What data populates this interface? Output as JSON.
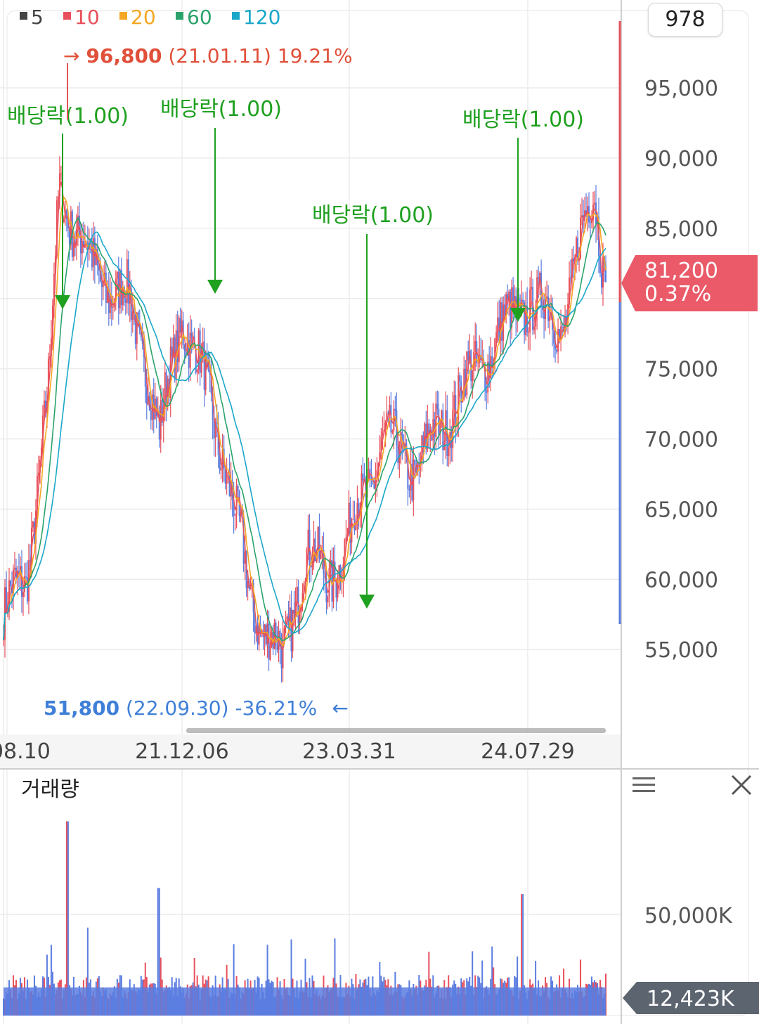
{
  "legend": [
    {
      "label": "5",
      "color": "#444444"
    },
    {
      "label": "10",
      "color": "#e8505b"
    },
    {
      "label": "20",
      "color": "#f5a623"
    },
    {
      "label": "60",
      "color": "#2aa36b"
    },
    {
      "label": "120",
      "color": "#1aa7c9"
    }
  ],
  "counter": "978",
  "high_marker": {
    "arrow": "→",
    "value": "96,800",
    "date": "(21.01.11)",
    "pct": "19.21%"
  },
  "low_marker": {
    "value": "51,800",
    "date": "(22.09.30)",
    "pct": "-36.21%",
    "arrow": "←"
  },
  "events": [
    "배당락(1.00)",
    "배당락(1.00)",
    "배당락(1.00)",
    "배당락(1.00)"
  ],
  "current": {
    "price": "81,200",
    "change": "0.37%"
  },
  "volume": {
    "title": "거래량",
    "tick": "50,000K",
    "current": "12,423K"
  },
  "colors": {
    "up": "#e8505b",
    "down": "#5b7de0",
    "event": "#1fa01f",
    "high": "#e0503a",
    "low": "#3f7fd8"
  },
  "chart_data": {
    "type": "candlestick",
    "y_ticks": [
      "95,000",
      "90,000",
      "85,000",
      "80,000",
      "75,000",
      "70,000",
      "65,000",
      "60,000",
      "55,000"
    ],
    "ylim": [
      50000,
      97500
    ],
    "x_ticks": [
      "20.08.10",
      "21.12.06",
      "23.03.31",
      "24.07.29"
    ],
    "moving_averages": [
      "5",
      "10",
      "20",
      "60",
      "120"
    ],
    "close_path": [
      {
        "date": "20.08.10",
        "close": 57500
      },
      {
        "date": "20.10",
        "close": 60000
      },
      {
        "date": "20.12",
        "close": 73000
      },
      {
        "date": "21.01.11",
        "close": 88000
      },
      {
        "date": "21.04",
        "close": 82000
      },
      {
        "date": "21.07",
        "close": 80000
      },
      {
        "date": "21.09",
        "close": 75000
      },
      {
        "date": "21.10",
        "close": 70000
      },
      {
        "date": "21.12.06",
        "close": 79000
      },
      {
        "date": "22.02",
        "close": 74000
      },
      {
        "date": "22.04",
        "close": 68000
      },
      {
        "date": "22.06",
        "close": 59000
      },
      {
        "date": "22.09.30",
        "close": 54000
      },
      {
        "date": "22.11",
        "close": 62000
      },
      {
        "date": "23.01",
        "close": 60000
      },
      {
        "date": "23.03.31",
        "close": 63000
      },
      {
        "date": "23.06",
        "close": 70000
      },
      {
        "date": "23.09",
        "close": 68000
      },
      {
        "date": "23.12",
        "close": 72000
      },
      {
        "date": "24.04",
        "close": 77000
      },
      {
        "date": "24.07.29",
        "close": 80000
      },
      {
        "date": "24.10",
        "close": 78000
      },
      {
        "date": "25.01",
        "close": 88000
      },
      {
        "date": "25.02",
        "close": 81200
      }
    ],
    "high": {
      "value": 96800,
      "date": "21.01.11",
      "pct": 19.21
    },
    "low": {
      "value": 51800,
      "date": "22.09.30",
      "pct": -36.21
    },
    "dividend_events": [
      {
        "date": "21.01",
        "label": "배당락(1.00)"
      },
      {
        "date": "21.12",
        "label": "배당락(1.00)"
      },
      {
        "date": "23.03",
        "label": "배당락(1.00)"
      },
      {
        "date": "24.07",
        "label": "배당락(1.00)"
      }
    ],
    "last": {
      "price": 81200,
      "change_pct": 0.37
    },
    "volume": {
      "tick": 50000000,
      "last": 12423000
    }
  }
}
